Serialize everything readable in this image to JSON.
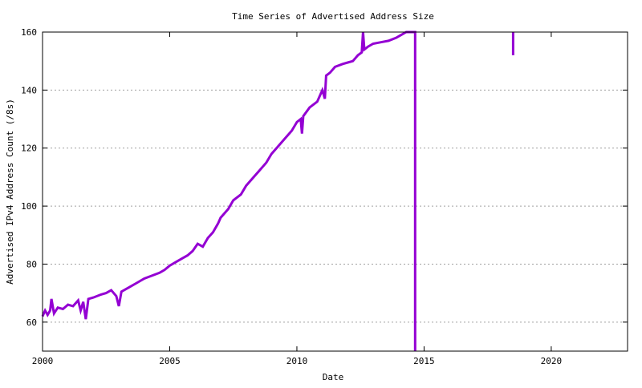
{
  "chart_data": {
    "type": "line",
    "title": "Time Series of Advertised Address Size",
    "xlabel": "Date",
    "ylabel": "Advertised IPv4 Address Count (/8s)",
    "xlim": [
      2000,
      2023
    ],
    "ylim": [
      50,
      160
    ],
    "xticks": [
      2000,
      2005,
      2010,
      2015,
      2020
    ],
    "xtick_labels": [
      "2000",
      "2005",
      "2010",
      "2015",
      "2020"
    ],
    "yticks": [
      60,
      80,
      100,
      120,
      140,
      160
    ],
    "ytick_labels": [
      "60",
      "80",
      "100",
      "120",
      "140",
      "160"
    ],
    "grid": "y-dashed",
    "legend": "none",
    "color": "#9400d3",
    "segments": [
      [
        [
          2000.0,
          62
        ],
        [
          2000.1,
          64
        ],
        [
          2000.2,
          62.5
        ],
        [
          2000.3,
          64
        ],
        [
          2000.35,
          68
        ],
        [
          2000.45,
          63
        ],
        [
          2000.6,
          65
        ],
        [
          2000.8,
          64.5
        ],
        [
          2001.0,
          66
        ],
        [
          2001.2,
          65.5
        ],
        [
          2001.4,
          67.5
        ],
        [
          2001.5,
          64
        ],
        [
          2001.6,
          67
        ],
        [
          2001.7,
          61
        ],
        [
          2001.8,
          68
        ],
        [
          2002.0,
          68.5
        ],
        [
          2002.3,
          69.5
        ],
        [
          2002.5,
          70
        ],
        [
          2002.7,
          71
        ],
        [
          2002.9,
          69
        ],
        [
          2003.0,
          65.5
        ],
        [
          2003.1,
          70.5
        ],
        [
          2003.4,
          72
        ],
        [
          2003.7,
          73.5
        ],
        [
          2004.0,
          75
        ],
        [
          2004.3,
          76
        ],
        [
          2004.6,
          77
        ],
        [
          2004.8,
          78
        ],
        [
          2005.0,
          79.5
        ],
        [
          2005.3,
          81
        ],
        [
          2005.5,
          82
        ],
        [
          2005.7,
          83
        ],
        [
          2005.9,
          84.5
        ],
        [
          2006.1,
          87
        ],
        [
          2006.3,
          86
        ],
        [
          2006.5,
          89
        ],
        [
          2006.7,
          91
        ],
        [
          2006.9,
          94
        ],
        [
          2007.0,
          96
        ],
        [
          2007.3,
          99
        ],
        [
          2007.5,
          102
        ],
        [
          2007.8,
          104
        ],
        [
          2008.0,
          107
        ],
        [
          2008.3,
          110
        ],
        [
          2008.5,
          112
        ],
        [
          2008.8,
          115
        ],
        [
          2009.0,
          118
        ],
        [
          2009.3,
          121
        ],
        [
          2009.5,
          123
        ],
        [
          2009.8,
          126
        ],
        [
          2010.0,
          129
        ],
        [
          2010.15,
          130
        ],
        [
          2010.2,
          125
        ],
        [
          2010.25,
          131
        ],
        [
          2010.5,
          134
        ],
        [
          2010.8,
          136
        ],
        [
          2011.0,
          140
        ],
        [
          2011.1,
          137
        ],
        [
          2011.15,
          145
        ],
        [
          2011.3,
          146
        ],
        [
          2011.5,
          148
        ],
        [
          2011.8,
          149
        ],
        [
          2012.0,
          149.5
        ],
        [
          2012.2,
          150
        ],
        [
          2012.4,
          152
        ],
        [
          2012.55,
          153
        ],
        [
          2012.6,
          160
        ],
        [
          2012.65,
          154
        ],
        [
          2012.8,
          155
        ],
        [
          2013.0,
          156
        ],
        [
          2013.3,
          156.5
        ],
        [
          2013.6,
          157
        ],
        [
          2013.9,
          158
        ],
        [
          2014.1,
          159
        ],
        [
          2014.3,
          160
        ],
        [
          2014.65,
          160
        ],
        [
          2014.65,
          50
        ]
      ],
      [
        [
          2018.5,
          160
        ],
        [
          2018.5,
          152
        ]
      ]
    ]
  }
}
